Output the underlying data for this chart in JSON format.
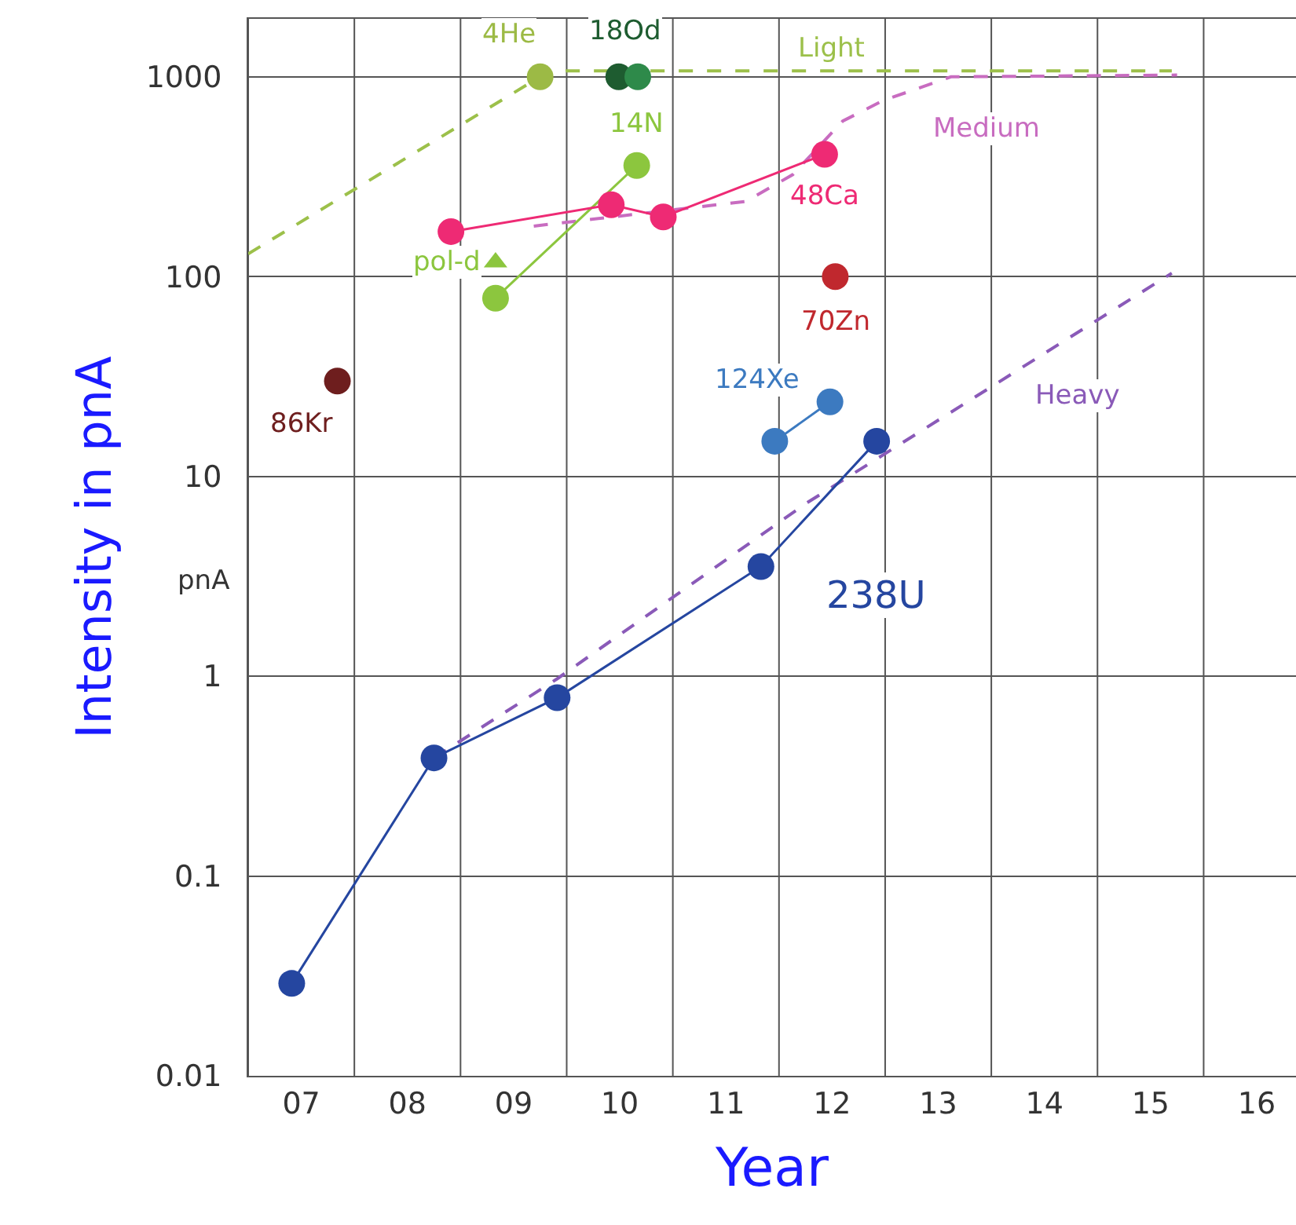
{
  "chart_data": {
    "type": "scatter",
    "xlabel": "Year",
    "ylabel": "Intensity in pnA",
    "log": "y",
    "grid": true,
    "legend": false,
    "xlim": [
      7,
      16.87
    ],
    "ylim": [
      0.01,
      1950
    ],
    "xticks": [
      {
        "value": 7,
        "label": null
      },
      {
        "value": 7.5,
        "label": "07"
      },
      {
        "value": 8,
        "label": null
      },
      {
        "value": 8.5,
        "label": "08"
      },
      {
        "value": 9,
        "label": null
      },
      {
        "value": 9.5,
        "label": "09"
      },
      {
        "value": 10,
        "label": null
      },
      {
        "value": 10.5,
        "label": "10"
      },
      {
        "value": 11,
        "label": null
      },
      {
        "value": 11.5,
        "label": "11"
      },
      {
        "value": 12,
        "label": null
      },
      {
        "value": 12.5,
        "label": "12"
      },
      {
        "value": 13,
        "label": null
      },
      {
        "value": 13.5,
        "label": "13"
      },
      {
        "value": 14,
        "label": null
      },
      {
        "value": 14.5,
        "label": "14"
      },
      {
        "value": 15,
        "label": null
      },
      {
        "value": 15.5,
        "label": "15"
      },
      {
        "value": 16,
        "label": null
      },
      {
        "value": 16.5,
        "label": "16"
      }
    ],
    "yticks": [
      0.01,
      0.1,
      1,
      10,
      100,
      1000
    ],
    "annotations": [
      "pnA"
    ],
    "series": [
      {
        "name": "Light",
        "type": "line",
        "line_style": "dashed",
        "marker": "none",
        "color": "#9cc04a",
        "x": [
          7,
          9.75,
          10.0,
          15.7
        ],
        "values": [
          130,
          1000,
          1070,
          1070
        ]
      },
      {
        "name": "Medium",
        "type": "line",
        "line_style": "dashed",
        "marker": "none",
        "color": "#c86cc0",
        "x": [
          9.69,
          11.69,
          12.13,
          12.6,
          12.98,
          13.62,
          15.75
        ],
        "values": [
          179,
          238,
          324,
          600,
          760,
          1000,
          1020
        ]
      },
      {
        "name": "Heavy",
        "type": "line",
        "line_style": "dashed",
        "marker": "none",
        "color": "#8a5ab8",
        "x": [
          8.75,
          9.91,
          12.25,
          15.7
        ],
        "values": [
          0.39,
          0.97,
          7.3,
          104
        ]
      },
      {
        "name": "4He",
        "marker": "circle",
        "color": "#9cba45",
        "x": [
          9.75
        ],
        "values": [
          1000
        ]
      },
      {
        "name": "18Od",
        "marker": "circle",
        "color": "#1e5c30",
        "colors": [
          "#1e5c30",
          "#2e8a4a"
        ],
        "x": [
          10.49,
          10.67
        ],
        "values": [
          1000,
          1000
        ]
      },
      {
        "name": "14N",
        "type": "line",
        "marker": "circle",
        "color": "#8cc63e",
        "x": [
          9.33,
          10.66
        ],
        "values": [
          78,
          360
        ]
      },
      {
        "name": "pol-d",
        "marker": "triangle",
        "color": "#8cc63e",
        "x": [
          9.33
        ],
        "values": [
          118
        ]
      },
      {
        "name": "48Ca",
        "type": "line",
        "marker": "circle",
        "color": "#ee2a74",
        "x": [
          8.91,
          10.42,
          10.91,
          12.43
        ],
        "values": [
          168,
          229,
          199,
          409
        ]
      },
      {
        "name": "70Zn",
        "marker": "circle",
        "color": "#c0282e",
        "x": [
          12.53
        ],
        "values": [
          100
        ]
      },
      {
        "name": "86Kr",
        "marker": "circle",
        "color": "#6e1e1e",
        "x": [
          7.84
        ],
        "values": [
          30
        ]
      },
      {
        "name": "124Xe",
        "type": "line",
        "marker": "circle",
        "color": "#3c7ac0",
        "x": [
          11.96,
          12.48
        ],
        "values": [
          15,
          23.6
        ]
      },
      {
        "name": "238U",
        "type": "line",
        "marker": "circle",
        "color": "#2546a0",
        "x": [
          7.41,
          8.75,
          9.91,
          11.83,
          12.92
        ],
        "values": [
          0.029,
          0.39,
          0.78,
          3.54,
          15
        ]
      }
    ]
  }
}
